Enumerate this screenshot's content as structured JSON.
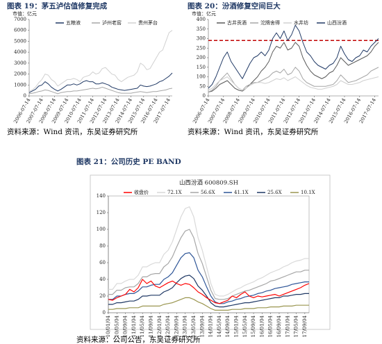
{
  "chart_data": [
    {
      "type": "line",
      "title": "图表 19：茅五泸估值修复完成",
      "y_label": "市值：亿元",
      "source": "资料来源：Wind 资讯，东吴证券研究所",
      "categories": [
        "2006-07-14",
        null,
        null,
        null,
        "2007-07-14",
        null,
        null,
        null,
        "2008-07-14",
        null,
        null,
        null,
        "2009-07-14",
        null,
        null,
        null,
        "2010-07-14",
        null,
        null,
        null,
        "2011-07-14",
        null,
        null,
        null,
        "2012-07-14",
        null,
        null,
        null,
        "2013-07-14",
        null,
        null,
        null,
        "2014-07-14",
        null,
        null,
        null,
        "2015-07-14",
        null,
        null,
        null,
        "2016-07-14",
        null,
        null,
        null,
        "2017-07-14",
        null
      ],
      "ylim": [
        0,
        7000
      ],
      "yticks": [
        0,
        1000,
        2000,
        3000,
        4000,
        5000,
        6000,
        7000
      ],
      "legend": "top",
      "series": [
        {
          "name": "五粮液",
          "color": "#1f3864",
          "values": [
            300,
            450,
            600,
            900,
            1000,
            1300,
            1100,
            800,
            600,
            450,
            600,
            800,
            1000,
            1000,
            1100,
            1000,
            1100,
            1300,
            1400,
            1300,
            1300,
            1100,
            1100,
            1200,
            1100,
            1000,
            800,
            700,
            600,
            550,
            500,
            550,
            600,
            650,
            700,
            1000,
            900,
            850,
            900,
            1000,
            1100,
            1300,
            1400,
            1600,
            1800,
            2100
          ]
        },
        {
          "name": "泸州老窖",
          "color": "#a6a6a6",
          "values": [
            200,
            250,
            300,
            400,
            450,
            550,
            500,
            400,
            300,
            200,
            300,
            350,
            400,
            400,
            450,
            450,
            500,
            550,
            600,
            650,
            700,
            650,
            700,
            800,
            700,
            600,
            500,
            400,
            300,
            250,
            250,
            250,
            250,
            300,
            350,
            400,
            350,
            300,
            350,
            400,
            400,
            450,
            500,
            550,
            650,
            700
          ]
        },
        {
          "name": "贵州茅台",
          "color": "#d0d0d0",
          "values": [
            400,
            550,
            800,
            1200,
            1500,
            2000,
            1900,
            1500,
            1300,
            900,
            1100,
            1300,
            1500,
            1500,
            1600,
            1500,
            1300,
            1700,
            1800,
            1900,
            2200,
            2000,
            2100,
            2500,
            2600,
            2300,
            2000,
            1900,
            1500,
            1300,
            1500,
            1700,
            1800,
            1900,
            2200,
            3000,
            2800,
            2400,
            2500,
            3000,
            3500,
            4000,
            4200,
            5000,
            5800,
            6000
          ]
        }
      ]
    },
    {
      "type": "line",
      "title": "图表 20：汾酒修复空间巨大",
      "y_label": "市值：亿元",
      "source": "资料来源：Wind 资讯，东吴证券研究所",
      "categories": [
        "2006-07-14",
        null,
        null,
        null,
        "2007-07-14",
        null,
        null,
        null,
        "2008-07-14",
        null,
        null,
        null,
        "2009-07-14",
        null,
        null,
        null,
        "2010-07-14",
        null,
        null,
        null,
        "2011-07-14",
        null,
        null,
        null,
        "2012-07-14",
        null,
        null,
        null,
        "2013-07-14",
        null,
        null,
        null,
        "2014-07-14",
        null,
        null,
        null,
        "2015-07-14",
        null,
        null,
        null,
        "2016-07-14",
        null,
        null,
        null,
        "2017-07-14",
        null
      ],
      "ylim": [
        0,
        400
      ],
      "yticks": [
        0,
        50,
        100,
        150,
        200,
        250,
        300,
        350,
        400
      ],
      "legend": "top",
      "reference_line": {
        "value": 290,
        "color": "#c00000"
      },
      "series": [
        {
          "name": "古井贡酒",
          "color": "#595959",
          "values": [
            20,
            25,
            40,
            60,
            70,
            80,
            60,
            40,
            30,
            25,
            40,
            60,
            80,
            100,
            130,
            150,
            180,
            230,
            260,
            250,
            280,
            240,
            250,
            280,
            260,
            200,
            160,
            130,
            110,
            100,
            90,
            100,
            120,
            130,
            160,
            200,
            180,
            160,
            170,
            180,
            190,
            200,
            210,
            230,
            260,
            280
          ]
        },
        {
          "name": "沱牌舍得",
          "color": "#a6a6a6",
          "values": [
            20,
            30,
            50,
            80,
            100,
            120,
            90,
            60,
            40,
            30,
            50,
            60,
            70,
            70,
            80,
            90,
            100,
            120,
            130,
            120,
            140,
            110,
            120,
            150,
            130,
            90,
            70,
            60,
            50,
            50,
            50,
            50,
            55,
            60,
            80,
            110,
            90,
            70,
            75,
            80,
            90,
            100,
            110,
            130,
            140,
            150
          ]
        },
        {
          "name": "水井坊",
          "color": "#d0d0d0",
          "values": [
            30,
            40,
            60,
            80,
            90,
            100,
            80,
            60,
            40,
            30,
            40,
            55,
            65,
            70,
            70,
            65,
            70,
            80,
            90,
            85,
            95,
            80,
            90,
            100,
            85,
            70,
            55,
            45,
            40,
            35,
            35,
            40,
            45,
            50,
            60,
            80,
            70,
            60,
            60,
            65,
            70,
            80,
            85,
            90,
            95,
            100
          ]
        },
        {
          "name": "山西汾酒",
          "color": "#1f3864",
          "values": [
            40,
            60,
            100,
            150,
            200,
            230,
            180,
            150,
            120,
            90,
            130,
            170,
            200,
            210,
            230,
            210,
            240,
            300,
            330,
            300,
            340,
            290,
            320,
            370,
            340,
            280,
            230,
            210,
            180,
            160,
            150,
            140,
            160,
            170,
            200,
            260,
            220,
            190,
            180,
            200,
            210,
            240,
            230,
            260,
            280,
            300
          ]
        }
      ]
    },
    {
      "type": "line",
      "title": "图表 21：公司历史 PE BAND",
      "subtitle": "山西汾酒 600809.SH",
      "source": "资料来源：公司公告，东吴证券研究所",
      "categories": [
        "10/01/04",
        null,
        "10/05/04",
        null,
        "10/09/04",
        null,
        "11/01/04",
        null,
        "11/05/04",
        null,
        "11/09/04",
        null,
        "12/01/04",
        null,
        "12/05/04",
        null,
        "12/09/04",
        null,
        "13/01/04",
        null,
        "13/05/04",
        null,
        "13/09/04",
        null,
        "14/01/04",
        null,
        "14/05/04",
        null,
        "14/09/04",
        null,
        "15/01/04",
        null,
        "15/05/04",
        null,
        "15/09/04",
        null,
        "16/01/04",
        null,
        "16/05/04",
        null,
        "16/09/04",
        null,
        "17/01/04",
        null,
        "17/05/04",
        null,
        "17/09/04",
        null
      ],
      "ylim": [
        0,
        140
      ],
      "yticks": [
        0,
        20,
        40,
        60,
        80,
        100,
        120,
        140
      ],
      "legend": "top",
      "series": [
        {
          "name": "收盘价",
          "color": "#ff0000",
          "values": [
            16,
            15,
            18,
            20,
            22,
            28,
            25,
            30,
            40,
            35,
            38,
            32,
            30,
            33,
            36,
            38,
            35,
            33,
            35,
            34,
            30,
            25,
            22,
            18,
            15,
            12,
            11,
            13,
            15,
            20,
            18,
            22,
            25,
            20,
            18,
            20,
            19,
            20,
            21,
            22,
            20,
            22,
            24,
            26,
            28,
            30,
            33,
            35
          ]
        },
        {
          "name": "72.1X",
          "color": "#d9d9d9",
          "values": [
            28,
            28,
            35,
            35,
            38,
            40,
            40,
            45,
            55,
            55,
            58,
            60,
            60,
            70,
            75,
            85,
            100,
            115,
            125,
            127,
            115,
            90,
            75,
            55,
            35,
            22,
            20,
            20,
            22,
            25,
            28,
            30,
            33,
            35,
            37,
            40,
            42,
            45,
            48,
            50,
            52,
            55,
            57,
            60,
            62,
            63,
            65,
            65
          ]
        },
        {
          "name": "56.6X",
          "color": "#a6a6a6",
          "values": [
            22,
            22,
            27,
            27,
            30,
            31,
            31,
            35,
            43,
            43,
            46,
            47,
            47,
            55,
            59,
            67,
            79,
            90,
            98,
            100,
            90,
            71,
            59,
            43,
            27,
            17,
            16,
            16,
            17,
            20,
            22,
            24,
            26,
            27,
            29,
            31,
            33,
            35,
            38,
            39,
            41,
            43,
            45,
            47,
            49,
            49,
            51,
            51
          ]
        },
        {
          "name": "41.1X",
          "color": "#2e5597",
          "values": [
            16,
            16,
            20,
            20,
            22,
            23,
            23,
            26,
            31,
            31,
            33,
            34,
            34,
            40,
            43,
            48,
            57,
            66,
            71,
            72,
            66,
            51,
            43,
            31,
            20,
            13,
            11,
            11,
            13,
            14,
            16,
            17,
            19,
            20,
            21,
            23,
            24,
            26,
            27,
            29,
            30,
            31,
            32,
            34,
            35,
            36,
            37,
            37
          ]
        },
        {
          "name": "25.6X",
          "color": "#1f3864",
          "values": [
            10,
            10,
            12,
            12,
            13,
            14,
            14,
            16,
            20,
            20,
            21,
            21,
            21,
            25,
            27,
            30,
            36,
            41,
            44,
            45,
            41,
            32,
            27,
            20,
            12,
            8,
            7,
            7,
            8,
            9,
            10,
            11,
            12,
            12,
            13,
            14,
            15,
            16,
            17,
            18,
            18,
            20,
            20,
            21,
            22,
            22,
            23,
            23
          ]
        },
        {
          "name": "10.1X",
          "color": "#9a9650",
          "values": [
            4,
            4,
            5,
            5,
            5,
            6,
            6,
            6,
            8,
            8,
            8,
            8,
            8,
            10,
            11,
            12,
            14,
            16,
            18,
            18,
            16,
            13,
            11,
            8,
            5,
            3,
            3,
            3,
            3,
            4,
            4,
            4,
            5,
            5,
            5,
            6,
            6,
            6,
            7,
            7,
            7,
            8,
            8,
            8,
            9,
            9,
            9,
            9
          ]
        }
      ]
    }
  ]
}
